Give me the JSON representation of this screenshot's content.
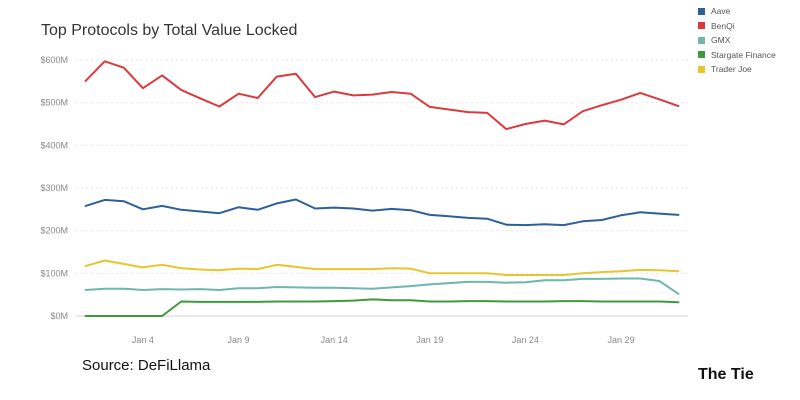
{
  "title": "Top Protocols by Total Value Locked",
  "source": "Source: DeFiLlama",
  "brand": "The Tie",
  "chart_data": {
    "type": "line",
    "title": "Top Protocols by Total Value Locked",
    "xlabel": "",
    "ylabel": "",
    "ylim": [
      0,
      600
    ],
    "yticks": [
      0,
      100,
      200,
      300,
      400,
      500,
      600
    ],
    "ytick_labels": [
      "$0M",
      "$100M",
      "$200M",
      "$300M",
      "$400M",
      "$500M",
      "$600M"
    ],
    "x": [
      1,
      2,
      3,
      4,
      5,
      6,
      7,
      8,
      9,
      10,
      11,
      12,
      13,
      14,
      15,
      16,
      17,
      18,
      19,
      20,
      21,
      22,
      23,
      24,
      25,
      26,
      27,
      28,
      29,
      30,
      31,
      32
    ],
    "xticks": [
      4,
      9,
      14,
      19,
      24,
      29
    ],
    "xtick_labels": [
      "Jan 4",
      "Jan 9",
      "Jan 14",
      "Jan 19",
      "Jan 24",
      "Jan 29"
    ],
    "grid": true,
    "legend_position": "top-right",
    "series": [
      {
        "name": "Aave",
        "color": "#2d5f9a",
        "values": [
          258,
          272,
          269,
          250,
          258,
          249,
          245,
          241,
          255,
          249,
          264,
          273,
          252,
          254,
          252,
          247,
          251,
          248,
          237,
          234,
          230,
          228,
          214,
          213,
          215,
          213,
          222,
          225,
          236,
          243,
          240,
          237
        ]
      },
      {
        "name": "BenQi",
        "color": "#d93a3e",
        "values": [
          551,
          597,
          582,
          534,
          564,
          530,
          510,
          491,
          521,
          511,
          561,
          568,
          513,
          526,
          517,
          519,
          525,
          521,
          490,
          484,
          478,
          476,
          438,
          450,
          458,
          449,
          480,
          494,
          507,
          523,
          508,
          492
        ]
      },
      {
        "name": "GMX",
        "color": "#6fb6ad",
        "values": [
          61,
          64,
          64,
          61,
          63,
          62,
          63,
          61,
          65,
          65,
          68,
          67,
          66,
          66,
          65,
          64,
          67,
          70,
          74,
          77,
          80,
          80,
          78,
          79,
          84,
          84,
          87,
          87,
          88,
          88,
          82,
          52
        ]
      },
      {
        "name": "Stargate Finance",
        "color": "#3f9a3c",
        "values": [
          0,
          0,
          0,
          0,
          0,
          34,
          33,
          33,
          33,
          33,
          34,
          34,
          34,
          35,
          36,
          39,
          37,
          37,
          34,
          34,
          35,
          35,
          34,
          34,
          34,
          35,
          35,
          34,
          34,
          34,
          34,
          32
        ]
      },
      {
        "name": "Trader Joe",
        "color": "#e8c52f",
        "values": [
          117,
          130,
          122,
          114,
          120,
          112,
          109,
          107,
          111,
          110,
          120,
          115,
          110,
          110,
          110,
          110,
          112,
          111,
          100,
          100,
          100,
          100,
          96,
          96,
          96,
          96,
          100,
          103,
          105,
          108,
          107,
          105
        ]
      }
    ]
  }
}
